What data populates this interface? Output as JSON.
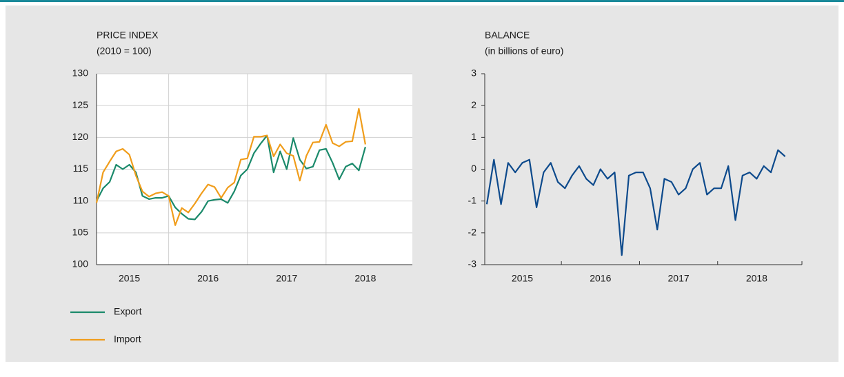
{
  "chart_data": [
    {
      "type": "line",
      "title": "PRICE INDEX",
      "subtitle": "(2010 = 100)",
      "categories": [
        null,
        null,
        null,
        null,
        null,
        "2015",
        null,
        null,
        null,
        null,
        null,
        null,
        null,
        null,
        null,
        null,
        null,
        "2016",
        null,
        null,
        null,
        null,
        null,
        null,
        null,
        null,
        null,
        null,
        null,
        "2017",
        null,
        null,
        null,
        null,
        null,
        null,
        null,
        null,
        null,
        null,
        null,
        "2018"
      ],
      "series": [
        {
          "name": "Export",
          "color": "#1b8a6b",
          "values": [
            110,
            112,
            113,
            115.7,
            115,
            115.7,
            114.5,
            110.8,
            110.3,
            110.5,
            110.5,
            110.8,
            109,
            108,
            107.2,
            107.1,
            108.3,
            110,
            110.2,
            110.3,
            109.7,
            111.5,
            114,
            115,
            117.5,
            119,
            120.3,
            114.5,
            117.8,
            115,
            119.9,
            116.5,
            115.1,
            115.4,
            118,
            118.2,
            116,
            113.4,
            115.4,
            115.9,
            114.8,
            118.5
          ]
        },
        {
          "name": "Import",
          "color": "#f09d1b",
          "values": [
            109.7,
            114.5,
            116.2,
            117.8,
            118.2,
            117.3,
            114,
            111.5,
            110.7,
            111.2,
            111.4,
            110.8,
            106.2,
            108.9,
            108.2,
            109.6,
            111.2,
            112.6,
            112.2,
            110.5,
            112.1,
            112.9,
            116.5,
            116.7,
            120.1,
            120.1,
            120.3,
            117,
            118.9,
            117.5,
            117.1,
            113.2,
            117.1,
            119.2,
            119.3,
            122,
            119.1,
            118.6,
            119.3,
            119.4,
            124.5,
            118.9
          ]
        }
      ],
      "ylim": [
        100,
        130
      ],
      "yticks": [
        100,
        105,
        110,
        115,
        120,
        125,
        130
      ],
      "grid": true,
      "legend": "bottom-left"
    },
    {
      "type": "line",
      "title": "BALANCE",
      "subtitle": "(in billions of euro)",
      "categories": [
        null,
        null,
        null,
        null,
        null,
        "2015",
        null,
        null,
        null,
        null,
        null,
        null,
        null,
        null,
        null,
        null,
        "2016",
        null,
        null,
        null,
        null,
        null,
        null,
        null,
        null,
        null,
        null,
        "2017",
        null,
        null,
        null,
        null,
        null,
        null,
        null,
        null,
        null,
        null,
        "2018",
        null,
        null,
        null,
        null
      ],
      "color": "#0d4a8c",
      "values": [
        -1.1,
        0.3,
        -1.1,
        0.2,
        -0.1,
        0.2,
        0.3,
        -1.2,
        -0.1,
        0.2,
        -0.4,
        -0.6,
        -0.2,
        0.1,
        -0.3,
        -0.5,
        0,
        -0.3,
        -0.1,
        -2.7,
        -0.2,
        -0.1,
        -0.1,
        -0.6,
        -1.9,
        -0.3,
        -0.4,
        -0.8,
        -0.6,
        0,
        0.2,
        -0.8,
        -0.6,
        -0.6,
        0.1,
        -1.6,
        -0.2,
        -0.1,
        -0.3,
        0.1,
        -0.1,
        0.6,
        0.4
      ],
      "ylim": [
        -3,
        3
      ],
      "yticks": [
        -3,
        -2,
        -1,
        0,
        1,
        2,
        3
      ],
      "grid": false
    }
  ]
}
